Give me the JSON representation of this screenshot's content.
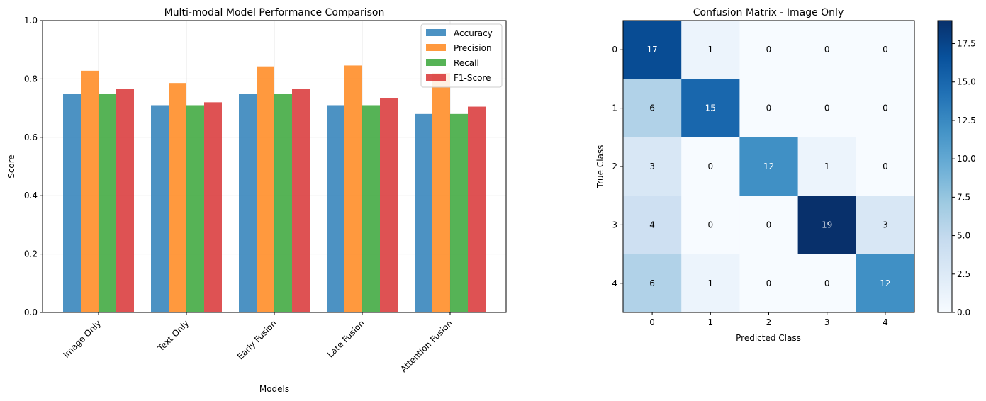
{
  "chart_data": [
    {
      "type": "bar",
      "title": "Multi-modal Model Performance Comparison",
      "xlabel": "Models",
      "ylabel": "Score",
      "ylim": [
        0,
        1.0
      ],
      "yticks": [
        "0.0",
        "0.2",
        "0.4",
        "0.6",
        "0.8",
        "1.0"
      ],
      "ytick_values": [
        0,
        0.2,
        0.4,
        0.6,
        0.8,
        1.0
      ],
      "grid": true,
      "legend_position": "top-right",
      "categories": [
        "Image Only",
        "Text Only",
        "Early Fusion",
        "Late Fusion",
        "Attention Fusion"
      ],
      "series": [
        {
          "name": "Accuracy",
          "color": "#1f77b4",
          "values": [
            0.75,
            0.71,
            0.75,
            0.71,
            0.68
          ]
        },
        {
          "name": "Precision",
          "color": "#ff7f0e",
          "values": [
            0.828,
            0.786,
            0.843,
            0.846,
            0.82
          ]
        },
        {
          "name": "Recall",
          "color": "#2ca02c",
          "values": [
            0.75,
            0.71,
            0.75,
            0.71,
            0.68
          ]
        },
        {
          "name": "F1-Score",
          "color": "#d62728",
          "values": [
            0.765,
            0.72,
            0.765,
            0.735,
            0.705
          ]
        }
      ]
    },
    {
      "type": "heatmap",
      "title": "Confusion Matrix - Image Only",
      "xlabel": "Predicted Class",
      "ylabel": "True Class",
      "x_categories": [
        "0",
        "1",
        "2",
        "3",
        "4"
      ],
      "y_categories": [
        "0",
        "1",
        "2",
        "3",
        "4"
      ],
      "matrix": [
        [
          17,
          1,
          0,
          0,
          0
        ],
        [
          6,
          15,
          0,
          0,
          0
        ],
        [
          3,
          0,
          12,
          1,
          0
        ],
        [
          4,
          0,
          0,
          19,
          3
        ],
        [
          6,
          1,
          0,
          0,
          12
        ]
      ],
      "colormap": "Blues",
      "colorbar_range": [
        0,
        19
      ],
      "colorbar_ticks": [
        "0.0",
        "2.5",
        "5.0",
        "7.5",
        "10.0",
        "12.5",
        "15.0",
        "17.5"
      ],
      "colorbar_tick_values": [
        0,
        2.5,
        5,
        7.5,
        10,
        12.5,
        15,
        17.5
      ]
    }
  ]
}
